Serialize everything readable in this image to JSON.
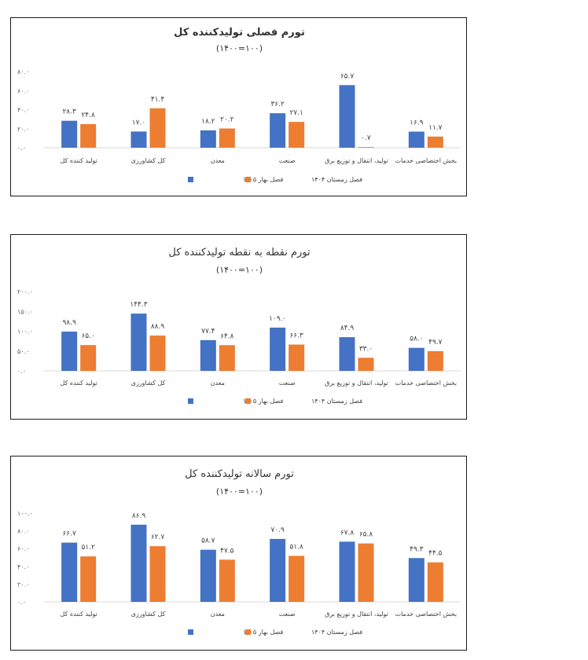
{
  "colors": {
    "spring_1405": "#4472C4",
    "winter_1404": "#ED7D31"
  },
  "legend": {
    "spring_1405": "فصل بهار ۱۴۰۵",
    "winter_1404": "فصل زمستان ۱۴۰۴"
  },
  "categories": [
    "تولید کننده کل",
    "کل کشاورزی",
    "معدن",
    "صنعت",
    "تولید، انتقال و توزیع برق",
    "بخش اختصاصی خدمات"
  ],
  "chart_data": [
    {
      "type": "bar",
      "title": "تورم فصلی تولیدکننده کل",
      "subtitle": "(۱۴۰۰=۱۰۰)",
      "title_bold": true,
      "ylim": [
        0,
        80
      ],
      "yticks": [
        "۰.۰",
        "۲۰.۰",
        "۴۰.۰",
        "۶۰.۰",
        "۸۰.۰"
      ],
      "series": [
        {
          "name": "فصل بهار ۱۴۰۵",
          "values": [
            28.3,
            17.0,
            18.2,
            36.2,
            65.7,
            16.9
          ],
          "labels": [
            "۲۸.۳",
            "۱۷.۰",
            "۱۸.۲",
            "۳۶.۲",
            "۶۵.۷",
            "۱۶.۹"
          ]
        },
        {
          "name": "فصل زمستان ۱۴۰۴",
          "values": [
            24.8,
            41.4,
            20.2,
            27.1,
            0.7,
            11.7
          ],
          "labels": [
            "۲۴.۸",
            "۴۱.۴",
            "۲۰.۲",
            "۲۷.۱",
            "۰.۷",
            "۱۱.۷"
          ]
        }
      ]
    },
    {
      "type": "bar",
      "title": "تورم نقطه به نقطه تولیدکننده کل",
      "subtitle": "(۱۴۰۰=۱۰۰)",
      "title_bold": false,
      "ylim": [
        0,
        200
      ],
      "yticks": [
        "۰.۰",
        "۵۰.۰",
        "۱۰۰.۰",
        "۱۵۰.۰",
        "۲۰۰.۰"
      ],
      "series": [
        {
          "name": "فصل بهار ۱۴۰۵",
          "values": [
            98.9,
            144.3,
            77.4,
            109.0,
            84.9,
            58.0
          ],
          "labels": [
            "۹۸.۹",
            "۱۴۴.۳",
            "۷۷.۴",
            "۱۰۹.۰",
            "۸۴.۹",
            "۵۸.۰"
          ]
        },
        {
          "name": "فصل زمستان ۱۴۰۴",
          "values": [
            65.0,
            88.9,
            64.8,
            66.3,
            33.0,
            49.7
          ],
          "labels": [
            "۶۵.۰",
            "۸۸.۹",
            "۶۴.۸",
            "۶۶.۳",
            "۳۳.۰",
            "۴۹.۷"
          ]
        }
      ]
    },
    {
      "type": "bar",
      "title": "تورم سالانه تولیدکننده کل",
      "subtitle": "(۱۴۰۰=۱۰۰)",
      "title_bold": false,
      "ylim": [
        0,
        100
      ],
      "yticks": [
        "۰.۰",
        "۲۰.۰",
        "۴۰.۰",
        "۶۰.۰",
        "۸۰.۰",
        "۱۰۰.۰"
      ],
      "series": [
        {
          "name": "فصل بهار ۱۴۰۵",
          "values": [
            66.7,
            86.9,
            58.7,
            70.9,
            67.8,
            49.3
          ],
          "labels": [
            "۶۶.۷",
            "۸۶.۹",
            "۵۸.۷",
            "۷۰.۹",
            "۶۷.۸",
            "۴۹.۳"
          ]
        },
        {
          "name": "فصل زمستان ۱۴۰۴",
          "values": [
            51.2,
            62.7,
            47.5,
            51.8,
            65.8,
            44.5
          ],
          "labels": [
            "۵۱.۲",
            "۶۲.۷",
            "۴۷.۵",
            "۵۱.۸",
            "۶۵.۸",
            "۴۴.۵"
          ]
        }
      ]
    }
  ]
}
